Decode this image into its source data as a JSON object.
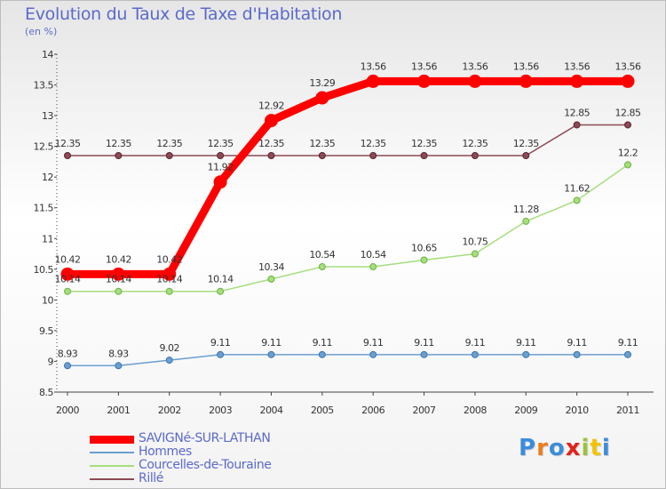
{
  "header": {
    "title": "Evolution du Taux de Taxe d'Habitation",
    "subtitle": "(en %)"
  },
  "brand": {
    "text": "Proxiti"
  },
  "chart_data": {
    "type": "line",
    "x": [
      "2000",
      "2001",
      "2002",
      "2003",
      "2004",
      "2005",
      "2006",
      "2007",
      "2008",
      "2009",
      "2010",
      "2011"
    ],
    "ylim": [
      8.5,
      14
    ],
    "yticks": [
      8.5,
      9,
      9.5,
      10,
      10.5,
      11,
      11.5,
      12,
      12.5,
      13,
      13.5,
      14
    ],
    "grid": false,
    "legend_position": "bottom-left",
    "series": [
      {
        "name": "SAVIGNé-SUR-LATHAN",
        "color": "#ff0000",
        "values": [
          10.42,
          10.42,
          10.42,
          11.92,
          12.92,
          13.29,
          13.56,
          13.56,
          13.56,
          13.56,
          13.56,
          13.56
        ],
        "labels": [
          "10.42",
          "10.42",
          "10.42",
          "11.92",
          "12.92",
          "13.29",
          "13.56",
          "13.56",
          "13.56",
          "13.56",
          "13.56",
          "13.56"
        ]
      },
      {
        "name": "Hommes",
        "color": "#6a9fd0",
        "values": [
          8.93,
          8.93,
          9.02,
          9.11,
          9.11,
          9.11,
          9.11,
          9.11,
          9.11,
          9.11,
          9.11,
          9.11
        ],
        "labels": [
          "8.93",
          "8.93",
          "9.02",
          "9.11",
          "9.11",
          "9.11",
          "9.11",
          "9.11",
          "9.11",
          "9.11",
          "9.11",
          "9.11"
        ]
      },
      {
        "name": "Courcelles-de-Touraine",
        "color": "#a5de7e",
        "values": [
          10.14,
          10.14,
          10.14,
          10.14,
          10.34,
          10.54,
          10.54,
          10.65,
          10.75,
          11.28,
          11.62,
          12.2
        ],
        "labels": [
          "10.14",
          "10.14",
          "10.14",
          "10.14",
          "10.34",
          "10.54",
          "10.54",
          "10.65",
          "10.75",
          "11.28",
          "11.62",
          "12.2"
        ]
      },
      {
        "name": "Rillé",
        "color": "#8c4a55",
        "values": [
          12.35,
          12.35,
          12.35,
          12.35,
          12.35,
          12.35,
          12.35,
          12.35,
          12.35,
          12.35,
          12.85,
          12.85
        ],
        "labels": [
          "12.35",
          "12.35",
          "12.35",
          "12.35",
          "12.35",
          "12.35",
          "12.35",
          "12.35",
          "12.35",
          "12.35",
          "12.85",
          "12.85"
        ]
      }
    ]
  }
}
